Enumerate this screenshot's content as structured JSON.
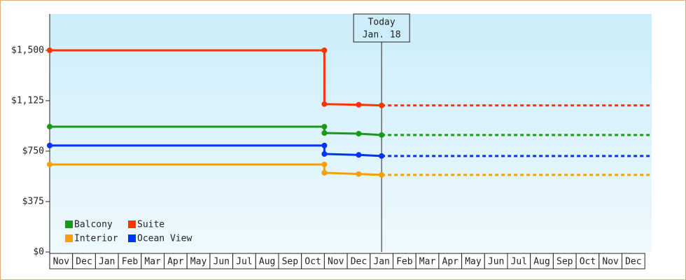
{
  "chart_data": {
    "type": "line",
    "categories": [
      "Nov",
      "Dec",
      "Jan",
      "Feb",
      "Mar",
      "Apr",
      "May",
      "Jun",
      "Jul",
      "Aug",
      "Sep",
      "Oct",
      "Nov",
      "Dec",
      "Jan",
      "Feb",
      "Mar",
      "Apr",
      "May",
      "Jun",
      "Jul",
      "Aug",
      "Sep",
      "Oct",
      "Nov",
      "Dec"
    ],
    "x": [
      0,
      12,
      12,
      13.5,
      14.5
    ],
    "xlim": [
      0,
      26.3
    ],
    "series": [
      {
        "name": "Balcony",
        "color": "#1a9a1a",
        "values": [
          932,
          932,
          885,
          880,
          870
        ]
      },
      {
        "name": "Suite",
        "color": "#ff3300",
        "values": [
          1500,
          1500,
          1100,
          1095,
          1090
        ]
      },
      {
        "name": "Interior",
        "color": "#f5a000",
        "values": [
          651,
          651,
          589,
          580,
          573
        ]
      },
      {
        "name": "Ocean View",
        "color": "#0033ff",
        "values": [
          792,
          792,
          729,
          722,
          714
        ]
      }
    ],
    "ylim": [
      0,
      1770
    ],
    "yticks": [
      {
        "value": 0,
        "label": "$0"
      },
      {
        "value": 375,
        "label": "$375"
      },
      {
        "value": 750,
        "label": "$750"
      },
      {
        "value": 1125,
        "label": "$1,125"
      },
      {
        "value": 1500,
        "label": "$1,500"
      }
    ],
    "annotation": {
      "x": 14.5,
      "lines": [
        "Today",
        "Jan. 18"
      ]
    }
  }
}
